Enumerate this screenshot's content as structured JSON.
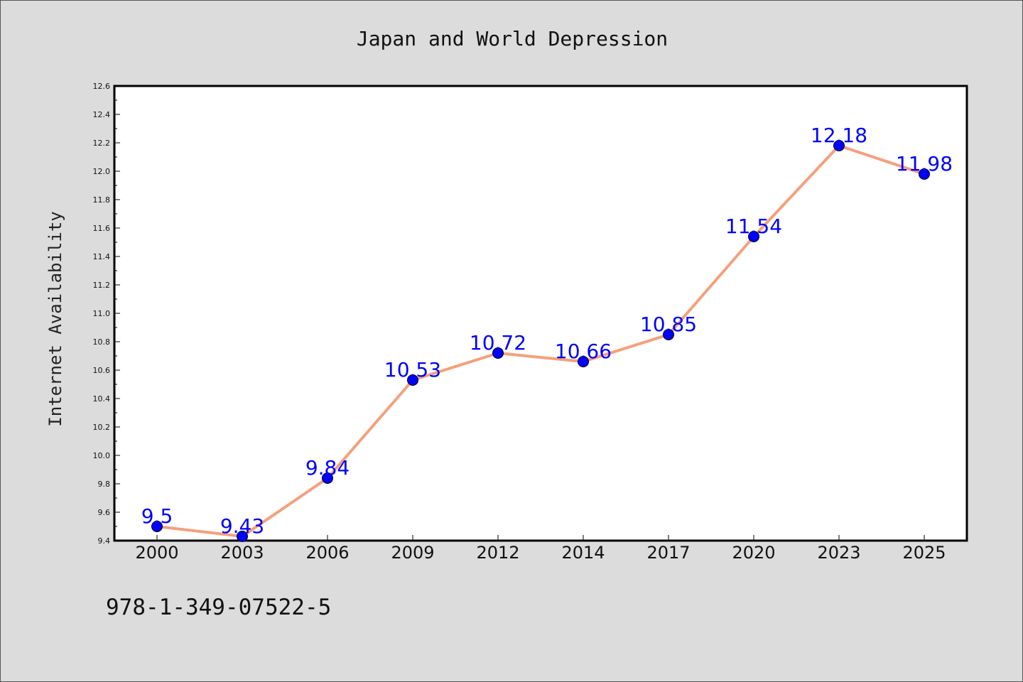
{
  "chart_data": {
    "type": "line",
    "title": "Japan and World Depression",
    "xlabel": "",
    "ylabel": "Internet Availability",
    "categories": [
      "2000",
      "2003",
      "2006",
      "2009",
      "2012",
      "2014",
      "2017",
      "2020",
      "2023",
      "2025"
    ],
    "series": [
      {
        "values": [
          9.5,
          9.43,
          9.84,
          10.53,
          10.72,
          10.66,
          10.85,
          11.54,
          12.18,
          11.98
        ],
        "labels": [
          "9.5",
          "9.43",
          "9.84",
          "10.53",
          "10.72",
          "10.66",
          "10.85",
          "11.54",
          "12.18",
          "11.98"
        ],
        "line_color": "#f4a07c",
        "marker_color": "#0000ff"
      }
    ],
    "ylim": [
      9.4,
      12.6
    ],
    "yticks": [
      "9.4",
      "9.6",
      "9.8",
      "10.0",
      "10.2",
      "10.4",
      "10.6",
      "10.8",
      "11.0",
      "11.2",
      "11.4",
      "11.6",
      "11.8",
      "12.0",
      "12.2",
      "12.4",
      "12.6"
    ],
    "grid": false,
    "legend": "none"
  },
  "footer": {
    "isbn": "978-1-349-07522-5"
  },
  "colors": {
    "background": "#dcdcdc",
    "plot_background": "#ffffff",
    "line": "#f4a07c",
    "marker": "#0000ff",
    "data_label": "#0000ff"
  }
}
